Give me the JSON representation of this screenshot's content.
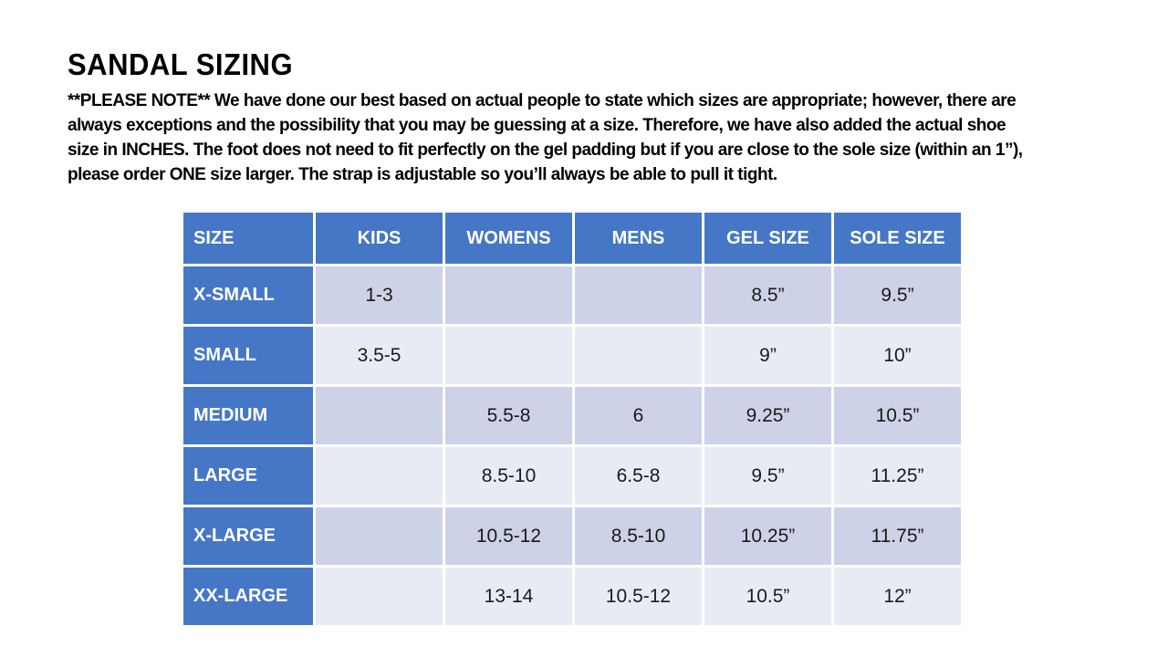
{
  "title": "SANDAL SIZING",
  "note": {
    "lines": [
      "**PLEASE NOTE**  We have done our best based on actual people to state which sizes are appropriate; however, there are",
      "always exceptions and the possibility that you may be guessing at a size.  Therefore, we have also added the actual shoe",
      "size in INCHES.  The foot does not need to fit perfectly on the gel padding but if you are close to the sole size (within an 1”),",
      "please order ONE size larger.  The strap is adjustable so you’ll always be able to pull it tight."
    ]
  },
  "table": {
    "headers": [
      "SIZE",
      "KIDS",
      "WOMENS",
      "MENS",
      "GEL SIZE",
      "SOLE SIZE"
    ],
    "rows": [
      {
        "label": "X-SMALL",
        "kids": "1-3",
        "womens": "",
        "mens": "",
        "gel": "8.5”",
        "sole": "9.5”"
      },
      {
        "label": "SMALL",
        "kids": "3.5-5",
        "womens": "",
        "mens": "",
        "gel": "9”",
        "sole": "10”"
      },
      {
        "label": "MEDIUM",
        "kids": "",
        "womens": "5.5-8",
        "mens": "6",
        "gel": "9.25”",
        "sole": "10.5”"
      },
      {
        "label": "LARGE",
        "kids": "",
        "womens": "8.5-10",
        "mens": "6.5-8",
        "gel": "9.5”",
        "sole": "11.25”"
      },
      {
        "label": "X-LARGE",
        "kids": "",
        "womens": "10.5-12",
        "mens": "8.5-10",
        "gel": "10.25”",
        "sole": "11.75”"
      },
      {
        "label": "XX-LARGE",
        "kids": "",
        "womens": "13-14",
        "mens": "10.5-12",
        "gel": "10.5”",
        "sole": "12”"
      }
    ],
    "colors": {
      "header_blue": "#4577C6",
      "band_dark": "#CDD2E8",
      "band_light": "#E9EBF4",
      "header_text": "#FFFFFF",
      "body_text": "#1A1A1A"
    }
  }
}
